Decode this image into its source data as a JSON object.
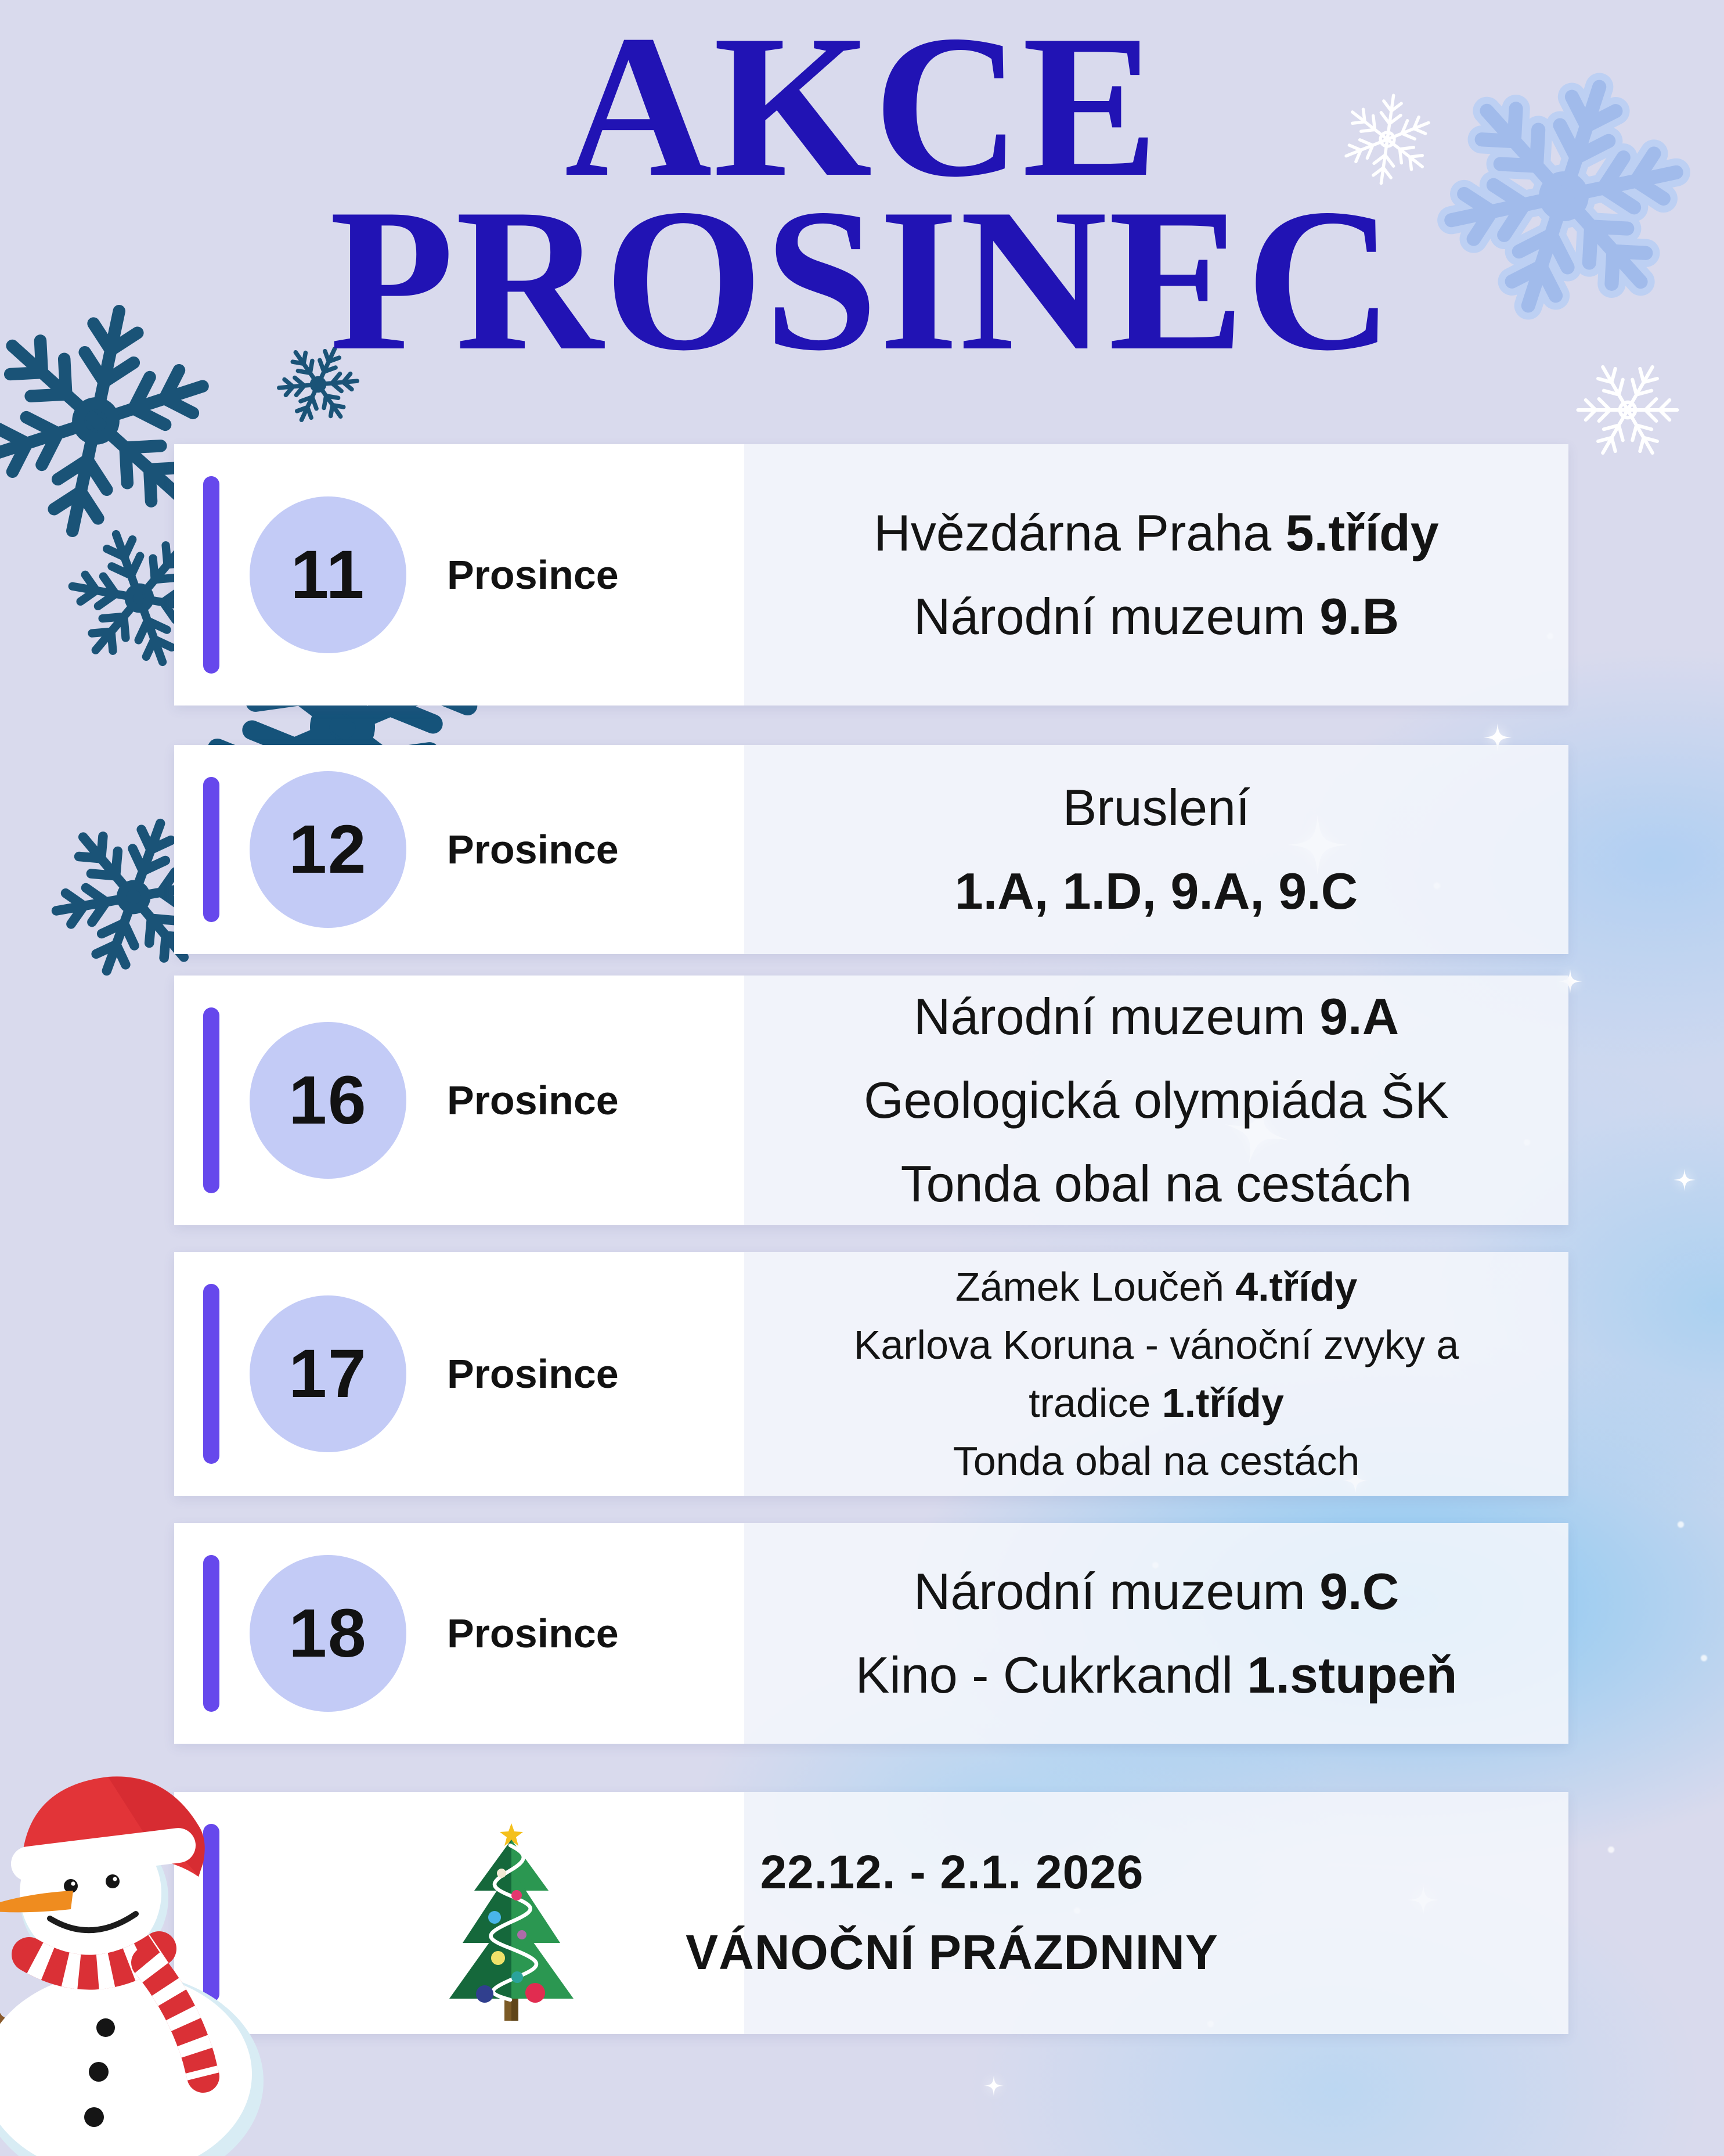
{
  "title": {
    "line1": "AKCE",
    "line2": "PROSINEC"
  },
  "events": [
    {
      "day": "11",
      "month": "Prosince",
      "size": "lg",
      "lines": [
        [
          {
            "t": "Hvězdárna Praha "
          },
          {
            "t": "5.třídy",
            "b": 1
          }
        ],
        [
          {
            "t": "Národní muzeum "
          },
          {
            "t": "9.B",
            "b": 1
          }
        ]
      ]
    },
    {
      "day": "12",
      "month": "Prosince",
      "size": "lg",
      "lines": [
        [
          {
            "t": "Bruslení"
          }
        ],
        [
          {
            "t": "1.A, 1.D, 9.A, 9.C",
            "b": 1
          }
        ]
      ]
    },
    {
      "day": "16",
      "month": "Prosince",
      "size": "lg",
      "lines": [
        [
          {
            "t": "Národní muzeum "
          },
          {
            "t": "9.A",
            "b": 1
          }
        ],
        [
          {
            "t": "Geologická olympiáda ŠK"
          }
        ],
        [
          {
            "t": "Tonda obal na cestách"
          }
        ]
      ]
    },
    {
      "day": "17",
      "month": "Prosince",
      "size": "md",
      "lines": [
        [
          {
            "t": "Zámek Loučeň "
          },
          {
            "t": "4.třídy",
            "b": 1
          }
        ],
        [
          {
            "t": "Karlova Koruna - vánoční zvyky a"
          }
        ],
        [
          {
            "t": "tradice "
          },
          {
            "t": "1.třídy",
            "b": 1
          }
        ],
        [
          {
            "t": "Tonda obal na cestách"
          }
        ]
      ]
    },
    {
      "day": "18",
      "month": "Prosince",
      "size": "lg",
      "lines": [
        [
          {
            "t": "Národní muzeum "
          },
          {
            "t": "9.C",
            "b": 1
          }
        ],
        [
          {
            "t": "Kino - Cukrkandl "
          },
          {
            "t": "1.stupeň",
            "b": 1
          }
        ]
      ]
    }
  ],
  "holiday": {
    "date_range": "22.12. - 2.1. 2026",
    "label": "VÁNOČNÍ PRÁZDNINY"
  },
  "colors": {
    "background": "#d9daed",
    "title": "#2113b4",
    "accent_bar": "#6648ec",
    "day_badge": "#c3cbf6",
    "snowflake_teal": "#1a5377",
    "snowflake_watercolor": "#a9c0ee",
    "card_white": "#ffffff",
    "card_right": "#f4f6fb",
    "text": "#141414"
  },
  "icons": {
    "decorations": [
      "snowflake-icon",
      "sparkle-icon",
      "christmas-tree-icon",
      "snowman-icon"
    ]
  }
}
